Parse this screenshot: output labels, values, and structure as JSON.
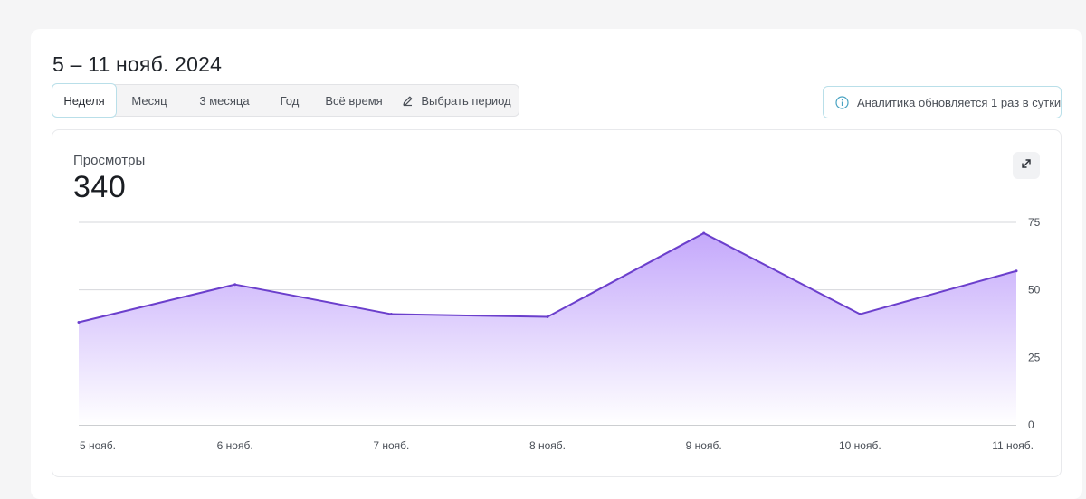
{
  "period_title": "5 – 11 нояб. 2024",
  "tabs": [
    {
      "label": "Неделя",
      "active": true
    },
    {
      "label": "Месяц"
    },
    {
      "label": "3 месяца"
    },
    {
      "label": "Год"
    },
    {
      "label": "Всё время"
    },
    {
      "label": "Выбрать период",
      "icon": "pencil-icon"
    }
  ],
  "info_text": "Аналитика обновляется 1 раз в сутки",
  "metric": {
    "label": "Просмотры",
    "value": "340"
  },
  "colors": {
    "line": "#6b3fcc",
    "fill_top": "#c4a8fb",
    "fill_bottom": "#ffffff",
    "grid": "#d6d7db"
  },
  "chart_data": {
    "type": "area",
    "categories": [
      "5 нояб.",
      "6 нояб.",
      "7 нояб.",
      "8 нояб.",
      "9 нояб.",
      "10 нояб.",
      "11 нояб."
    ],
    "values": [
      38,
      52,
      41,
      40,
      71,
      41,
      57
    ],
    "yticks": [
      0,
      25,
      50,
      75
    ],
    "ylim": [
      0,
      75
    ],
    "y_axis_side": "right",
    "grid": true
  }
}
